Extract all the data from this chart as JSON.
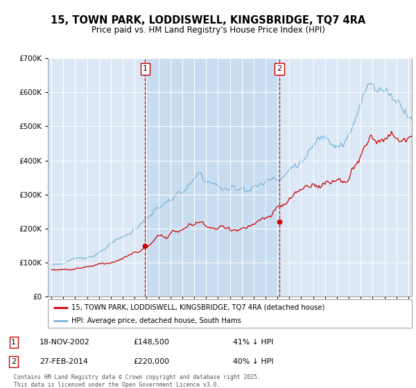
{
  "title": "15, TOWN PARK, LODDISWELL, KINGSBRIDGE, TQ7 4RA",
  "subtitle": "Price paid vs. HM Land Registry's House Price Index (HPI)",
  "legend_line1": "15, TOWN PARK, LODDISWELL, KINGSBRIDGE, TQ7 4RA (detached house)",
  "legend_line2": "HPI: Average price, detached house, South Hams",
  "marker1_date": "18-NOV-2002",
  "marker1_price": 148500,
  "marker1_pct": "41% ↓ HPI",
  "marker2_date": "27-FEB-2014",
  "marker2_price": 220000,
  "marker2_pct": "40% ↓ HPI",
  "footer": "Contains HM Land Registry data © Crown copyright and database right 2025.\nThis data is licensed under the Open Government Licence v3.0.",
  "hpi_color": "#7ab4d8",
  "price_color": "#cc0000",
  "vline_color": "#cc0000",
  "marker1_x_year": 2002.88,
  "marker2_x_year": 2014.16,
  "marker1_y": 148500,
  "marker2_y": 220000,
  "ylim": [
    0,
    700000
  ],
  "xlim_start": 1994.7,
  "xlim_end": 2025.3,
  "plot_bg": "#dce8f5",
  "shade_color": "#c8ddf0"
}
